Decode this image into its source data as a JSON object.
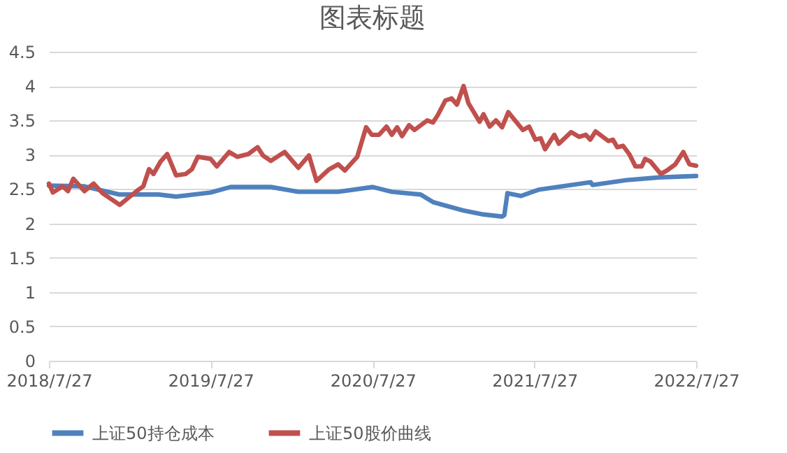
{
  "chart_data": {
    "type": "line",
    "title": "图表标题",
    "xlim": [
      "2018-07-27",
      "2022-07-27"
    ],
    "xticks": [
      {
        "value": "2018-07-27",
        "label": "2018/7/27"
      },
      {
        "value": "2019-07-27",
        "label": "2019/7/27"
      },
      {
        "value": "2020-07-27",
        "label": "2020/7/27"
      },
      {
        "value": "2021-07-27",
        "label": "2021/7/27"
      },
      {
        "value": "2022-07-27",
        "label": "2022/7/27"
      }
    ],
    "ylim": [
      0,
      4.5
    ],
    "yticks": [
      0,
      0.5,
      1,
      1.5,
      2,
      2.5,
      3,
      3.5,
      4,
      4.5
    ],
    "grid": "y",
    "legend": "bottom",
    "series": [
      {
        "name": "上证50持仓成本",
        "color": "#4f81bd",
        "x": [
          "2018-07-27",
          "2018-10-15",
          "2019-01-03",
          "2019-04-01",
          "2019-05-10",
          "2019-07-27",
          "2019-09-10",
          "2019-12-10",
          "2020-02-10",
          "2020-05-10",
          "2020-07-27",
          "2020-09-08",
          "2020-11-12",
          "2020-12-10",
          "2021-02-15",
          "2021-04-03",
          "2021-05-15",
          "2021-05-20",
          "2021-05-27",
          "2021-06-27",
          "2021-08-05",
          "2021-12-01",
          "2021-12-05",
          "2022-02-20",
          "2022-05-05",
          "2022-07-27"
        ],
        "values": [
          2.55,
          2.54,
          2.42,
          2.42,
          2.39,
          2.45,
          2.53,
          2.53,
          2.46,
          2.46,
          2.53,
          2.46,
          2.42,
          2.31,
          2.19,
          2.13,
          2.1,
          2.12,
          2.44,
          2.4,
          2.49,
          2.6,
          2.56,
          2.63,
          2.67,
          2.69
        ]
      },
      {
        "name": "上证50股价曲线",
        "color": "#c0504d",
        "x": [
          "2018-07-27",
          "2018-08-05",
          "2018-08-27",
          "2018-09-08",
          "2018-09-20",
          "2018-10-15",
          "2018-11-05",
          "2018-11-25",
          "2019-01-03",
          "2019-02-10",
          "2019-02-25",
          "2019-03-10",
          "2019-03-20",
          "2019-04-05",
          "2019-04-20",
          "2019-05-10",
          "2019-06-01",
          "2019-06-15",
          "2019-06-28",
          "2019-07-27",
          "2019-08-10",
          "2019-09-07",
          "2019-09-25",
          "2019-10-20",
          "2019-11-10",
          "2019-11-22",
          "2019-12-10",
          "2020-01-10",
          "2020-02-10",
          "2020-03-05",
          "2020-03-22",
          "2020-04-20",
          "2020-05-10",
          "2020-05-25",
          "2020-06-22",
          "2020-07-12",
          "2020-07-25",
          "2020-08-10",
          "2020-08-27",
          "2020-09-08",
          "2020-09-20",
          "2020-10-01",
          "2020-10-17",
          "2020-10-29",
          "2020-11-27",
          "2020-12-10",
          "2020-12-21",
          "2021-01-07",
          "2021-01-21",
          "2021-02-02",
          "2021-02-17",
          "2021-02-28",
          "2021-03-25",
          "2021-04-03",
          "2021-04-17",
          "2021-05-01",
          "2021-05-15",
          "2021-05-29",
          "2021-06-17",
          "2021-07-01",
          "2021-07-15",
          "2021-07-29",
          "2021-08-10",
          "2021-08-20",
          "2021-09-10",
          "2021-09-20",
          "2021-10-18",
          "2021-11-05",
          "2021-11-20",
          "2021-11-30",
          "2021-12-12",
          "2022-01-10",
          "2022-01-20",
          "2022-01-30",
          "2022-02-12",
          "2022-02-26",
          "2022-03-12",
          "2022-03-26",
          "2022-04-03",
          "2022-04-15",
          "2022-05-08",
          "2022-05-22",
          "2022-06-10",
          "2022-06-28",
          "2022-07-12",
          "2022-07-27"
        ],
        "values": [
          2.58,
          2.45,
          2.54,
          2.47,
          2.65,
          2.47,
          2.58,
          2.44,
          2.27,
          2.47,
          2.54,
          2.79,
          2.72,
          2.9,
          3.01,
          2.7,
          2.72,
          2.79,
          2.97,
          2.94,
          2.83,
          3.04,
          2.97,
          3.01,
          3.11,
          2.99,
          2.91,
          3.04,
          2.81,
          2.99,
          2.62,
          2.79,
          2.86,
          2.77,
          2.97,
          3.4,
          3.29,
          3.29,
          3.41,
          3.29,
          3.4,
          3.27,
          3.43,
          3.36,
          3.5,
          3.47,
          3.58,
          3.79,
          3.82,
          3.73,
          4.0,
          3.75,
          3.48,
          3.59,
          3.41,
          3.5,
          3.4,
          3.62,
          3.47,
          3.36,
          3.41,
          3.22,
          3.24,
          3.08,
          3.29,
          3.16,
          3.33,
          3.26,
          3.29,
          3.22,
          3.34,
          3.2,
          3.22,
          3.11,
          3.13,
          3.01,
          2.83,
          2.83,
          2.94,
          2.9,
          2.72,
          2.77,
          2.86,
          3.04,
          2.86,
          2.84
        ]
      }
    ]
  }
}
